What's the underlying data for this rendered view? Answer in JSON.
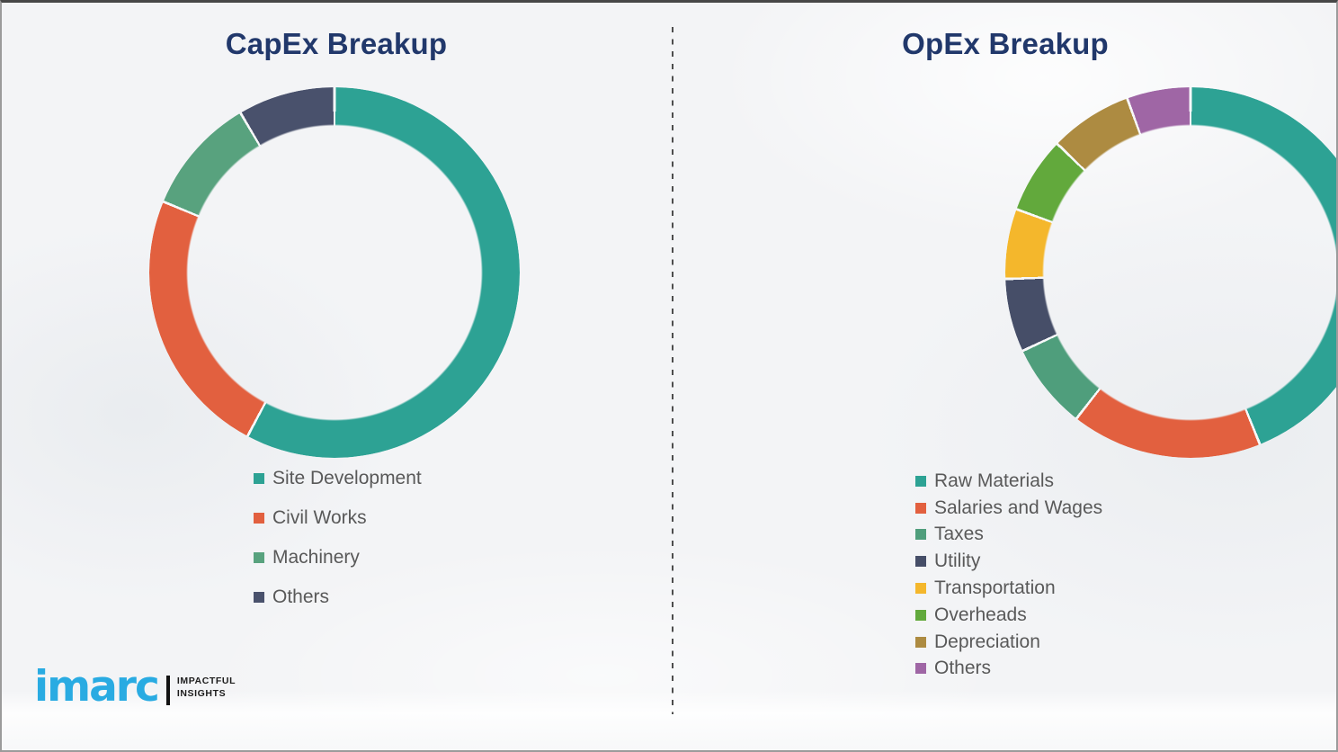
{
  "chart_data": [
    {
      "type": "pie",
      "subtype": "donut",
      "title": "CapEx Breakup",
      "legend_position": "bottom-left",
      "title_color": "#21386B",
      "segments": [
        {
          "label": "Site Development",
          "percent": 58,
          "start_deg": 0,
          "end_deg": 208,
          "color": "#2DA294"
        },
        {
          "label": "Civil Works",
          "percent": 23.5,
          "start_deg": 208,
          "end_deg": 292.5,
          "color": "#E2603F"
        },
        {
          "label": "Machinery",
          "percent": 10.3,
          "start_deg": 292.5,
          "end_deg": 329.5,
          "color": "#58A27E"
        },
        {
          "label": "Others",
          "percent": 8.2,
          "start_deg": 329.5,
          "end_deg": 360,
          "color": "#49516C"
        }
      ]
    },
    {
      "type": "pie",
      "subtype": "donut",
      "title": "OpEx Breakup",
      "legend_position": "bottom-left",
      "title_color": "#21386B",
      "segments": [
        {
          "label": "Raw Materials",
          "percent": 43.9,
          "start_deg": 0,
          "end_deg": 158,
          "color": "#2DA294"
        },
        {
          "label": "Salaries and Wages",
          "percent": 16.7,
          "start_deg": 158,
          "end_deg": 218,
          "color": "#E2603F"
        },
        {
          "label": "Taxes",
          "percent": 7.5,
          "start_deg": 218,
          "end_deg": 245,
          "color": "#4F9E7C"
        },
        {
          "label": "Utility",
          "percent": 6.4,
          "start_deg": 245,
          "end_deg": 268,
          "color": "#464E68"
        },
        {
          "label": "Transportation",
          "percent": 6.1,
          "start_deg": 268,
          "end_deg": 290,
          "color": "#F4B72C"
        },
        {
          "label": "Overheads",
          "percent": 6.7,
          "start_deg": 290,
          "end_deg": 314,
          "color": "#62A93C"
        },
        {
          "label": "Depreciation",
          "percent": 7.2,
          "start_deg": 314,
          "end_deg": 340,
          "color": "#AD8B41"
        },
        {
          "label": "Others",
          "percent": 5.6,
          "start_deg": 340,
          "end_deg": 360,
          "color": "#9F66A5"
        }
      ]
    }
  ],
  "logo": {
    "brand": "imarc",
    "brand_color": "#29ABE2",
    "tagline_line1": "IMPACTFUL",
    "tagline_line2": "INSIGHTS"
  }
}
